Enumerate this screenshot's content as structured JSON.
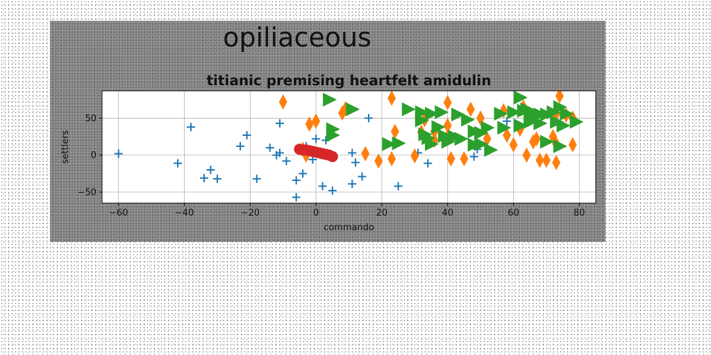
{
  "suptitle": "opiliaceous",
  "chart_data": {
    "type": "scatter",
    "title": "titianic premising heartfelt amidulin",
    "xlabel": "commando",
    "ylabel": "settlers",
    "xlim": [
      -65,
      85
    ],
    "ylim": [
      -65,
      87
    ],
    "xticks": [
      -60,
      -40,
      -20,
      0,
      20,
      40,
      60,
      80
    ],
    "yticks": [
      -50,
      0,
      50
    ],
    "grid": true,
    "legend": "none",
    "series": [
      {
        "marker": "plus",
        "color": "#1f77b4",
        "points": [
          [
            -60,
            2
          ],
          [
            -42,
            -11
          ],
          [
            -38,
            38
          ],
          [
            -34,
            -31
          ],
          [
            -32,
            -20
          ],
          [
            -30,
            -32
          ],
          [
            -23,
            12
          ],
          [
            -21,
            27
          ],
          [
            -18,
            -32
          ],
          [
            -14,
            10
          ],
          [
            -12,
            0
          ],
          [
            -11,
            3
          ],
          [
            -11,
            43
          ],
          [
            -9,
            -8
          ],
          [
            -6,
            -34
          ],
          [
            -6,
            -57
          ],
          [
            -4,
            -25
          ],
          [
            -3,
            12
          ],
          [
            -1,
            -6
          ],
          [
            0,
            22
          ],
          [
            2,
            -42
          ],
          [
            3,
            20
          ],
          [
            5,
            -48
          ],
          [
            11,
            -39
          ],
          [
            11,
            3
          ],
          [
            12,
            -10
          ],
          [
            14,
            -29
          ],
          [
            16,
            50
          ],
          [
            25,
            -42
          ],
          [
            31,
            3
          ],
          [
            34,
            -11
          ],
          [
            48,
            -2
          ],
          [
            49,
            8
          ],
          [
            58,
            46
          ]
        ]
      },
      {
        "marker": "thin-diamond",
        "color": "#ff7f0e",
        "points": [
          [
            -10,
            72
          ],
          [
            -2,
            42
          ],
          [
            0,
            46
          ],
          [
            -4,
            8
          ],
          [
            -3,
            0
          ],
          [
            8,
            57
          ],
          [
            9,
            63
          ],
          [
            15,
            2
          ],
          [
            19,
            -8
          ],
          [
            23,
            -5
          ],
          [
            23,
            77
          ],
          [
            24,
            32
          ],
          [
            30,
            -1
          ],
          [
            32,
            31
          ],
          [
            33,
            48
          ],
          [
            36,
            20
          ],
          [
            36,
            32
          ],
          [
            40,
            40
          ],
          [
            40,
            71
          ],
          [
            40,
            25
          ],
          [
            41,
            -5
          ],
          [
            45,
            -5
          ],
          [
            47,
            62
          ],
          [
            50,
            50
          ],
          [
            52,
            22
          ],
          [
            57,
            60
          ],
          [
            58,
            27
          ],
          [
            60,
            14
          ],
          [
            62,
            35
          ],
          [
            63,
            65
          ],
          [
            64,
            0
          ],
          [
            66,
            18
          ],
          [
            67,
            22
          ],
          [
            68,
            -7
          ],
          [
            70,
            -7
          ],
          [
            72,
            25
          ],
          [
            73,
            15
          ],
          [
            73,
            -10
          ],
          [
            73,
            56
          ],
          [
            74,
            80
          ],
          [
            78,
            50
          ],
          [
            78,
            14
          ],
          [
            76,
            54
          ]
        ]
      },
      {
        "marker": "triangle-right",
        "color": "#2ca02c",
        "points": [
          [
            4,
            75
          ],
          [
            5,
            35
          ],
          [
            5,
            27
          ],
          [
            11,
            62
          ],
          [
            22,
            15
          ],
          [
            25,
            16
          ],
          [
            28,
            62
          ],
          [
            32,
            58
          ],
          [
            32,
            47
          ],
          [
            33,
            28
          ],
          [
            34,
            23
          ],
          [
            35,
            56
          ],
          [
            35,
            15
          ],
          [
            37,
            38
          ],
          [
            38,
            58
          ],
          [
            39,
            26
          ],
          [
            40,
            18
          ],
          [
            42,
            25
          ],
          [
            43,
            55
          ],
          [
            44,
            22
          ],
          [
            46,
            48
          ],
          [
            48,
            32
          ],
          [
            48,
            14
          ],
          [
            50,
            30
          ],
          [
            50,
            15
          ],
          [
            52,
            37
          ],
          [
            53,
            7
          ],
          [
            56,
            56
          ],
          [
            57,
            37
          ],
          [
            60,
            58
          ],
          [
            62,
            78
          ],
          [
            62,
            40
          ],
          [
            63,
            60
          ],
          [
            64,
            62
          ],
          [
            65,
            45
          ],
          [
            65,
            51
          ],
          [
            66,
            57
          ],
          [
            68,
            43
          ],
          [
            68,
            55
          ],
          [
            70,
            55
          ],
          [
            70,
            18
          ],
          [
            72,
            58
          ],
          [
            73,
            45
          ],
          [
            74,
            12
          ],
          [
            74,
            65
          ],
          [
            75,
            40
          ],
          [
            76,
            56
          ],
          [
            79,
            45
          ]
        ]
      },
      {
        "marker": "circle",
        "color": "#d62728",
        "points": [
          [
            -5,
            8
          ],
          [
            -4,
            7
          ],
          [
            -3,
            7
          ],
          [
            -2,
            6
          ],
          [
            -1,
            5
          ],
          [
            0,
            4
          ],
          [
            1,
            3
          ],
          [
            2,
            2
          ],
          [
            3,
            1
          ],
          [
            4,
            0
          ],
          [
            5,
            -2
          ]
        ]
      }
    ]
  }
}
